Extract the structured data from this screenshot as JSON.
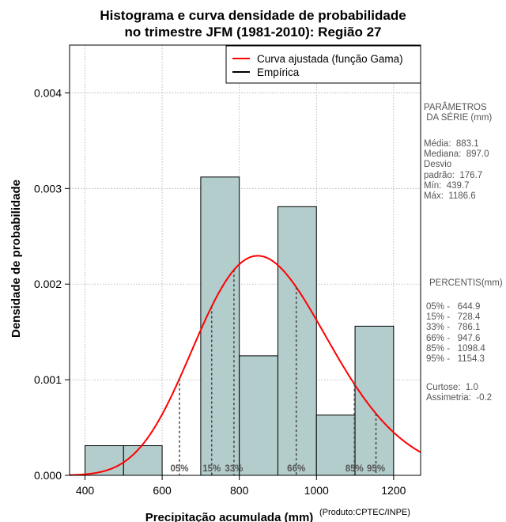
{
  "chart_data": {
    "type": "bar",
    "title_line1": "Histograma e curva densidade de probabilidade",
    "title_line2": "no trimestre JFM (1981-2010): Região 27",
    "xlabel": "Precipitação acumulada (mm)",
    "ylabel": "Densidade de probabilidade",
    "source_note": "(Produto:CPTEC/INPE)",
    "xlim": [
      360,
      1270
    ],
    "ylim": [
      0,
      0.0045
    ],
    "xticks": [
      400,
      600,
      800,
      1000,
      1200
    ],
    "yticks": [
      0.0,
      0.001,
      0.002,
      0.003,
      0.004
    ],
    "ytick_labels": [
      "0.000",
      "0.001",
      "0.002",
      "0.003",
      "0.004"
    ],
    "grid": true,
    "bins": [
      {
        "start": 400,
        "end": 500,
        "density": 0.00031
      },
      {
        "start": 500,
        "end": 600,
        "density": 0.00031
      },
      {
        "start": 700,
        "end": 800,
        "density": 0.00312
      },
      {
        "start": 800,
        "end": 900,
        "density": 0.00125
      },
      {
        "start": 900,
        "end": 1000,
        "density": 0.00281
      },
      {
        "start": 1000,
        "end": 1100,
        "density": 0.00063
      },
      {
        "start": 1100,
        "end": 1200,
        "density": 0.00156
      }
    ],
    "gamma_curve": {
      "mean": 883.1,
      "sd": 176.7
    },
    "percentile_lines": [
      {
        "label": "05%",
        "value": 644.9
      },
      {
        "label": "15%",
        "value": 728.4
      },
      {
        "label": "33%",
        "value": 786.1
      },
      {
        "label": "66%",
        "value": 947.6
      },
      {
        "label": "85%",
        "value": 1098.4
      },
      {
        "label": "95%",
        "value": 1154.3
      }
    ],
    "legend": {
      "position": "top-right",
      "entries": [
        {
          "label": "Curva ajustada (função Gama)",
          "color": "#ff0000"
        },
        {
          "label": "Empírica",
          "color": "#000000"
        }
      ]
    },
    "colors": {
      "bar_fill": "#b3cccc",
      "curve": "#ff0000",
      "percentile_label": "#555555"
    }
  },
  "side_panel": {
    "params_title": "PARÂMETROS\n DA SÉRIE (mm)",
    "params_body": "Média:  883.1\nMediana:  897.0\nDesvio\npadrão:  176.7\nMín:  439.7\nMáx:  1186.6",
    "percentis_title": "PERCENTIS(mm)",
    "percentis_body": "05% -   644.9\n15% -   728.4\n33% -   786.1\n66% -   947.6\n85% -   1098.4\n95% -   1154.3",
    "stats_body": "Curtose:  1.0\nAssimetria:  -0.2"
  }
}
